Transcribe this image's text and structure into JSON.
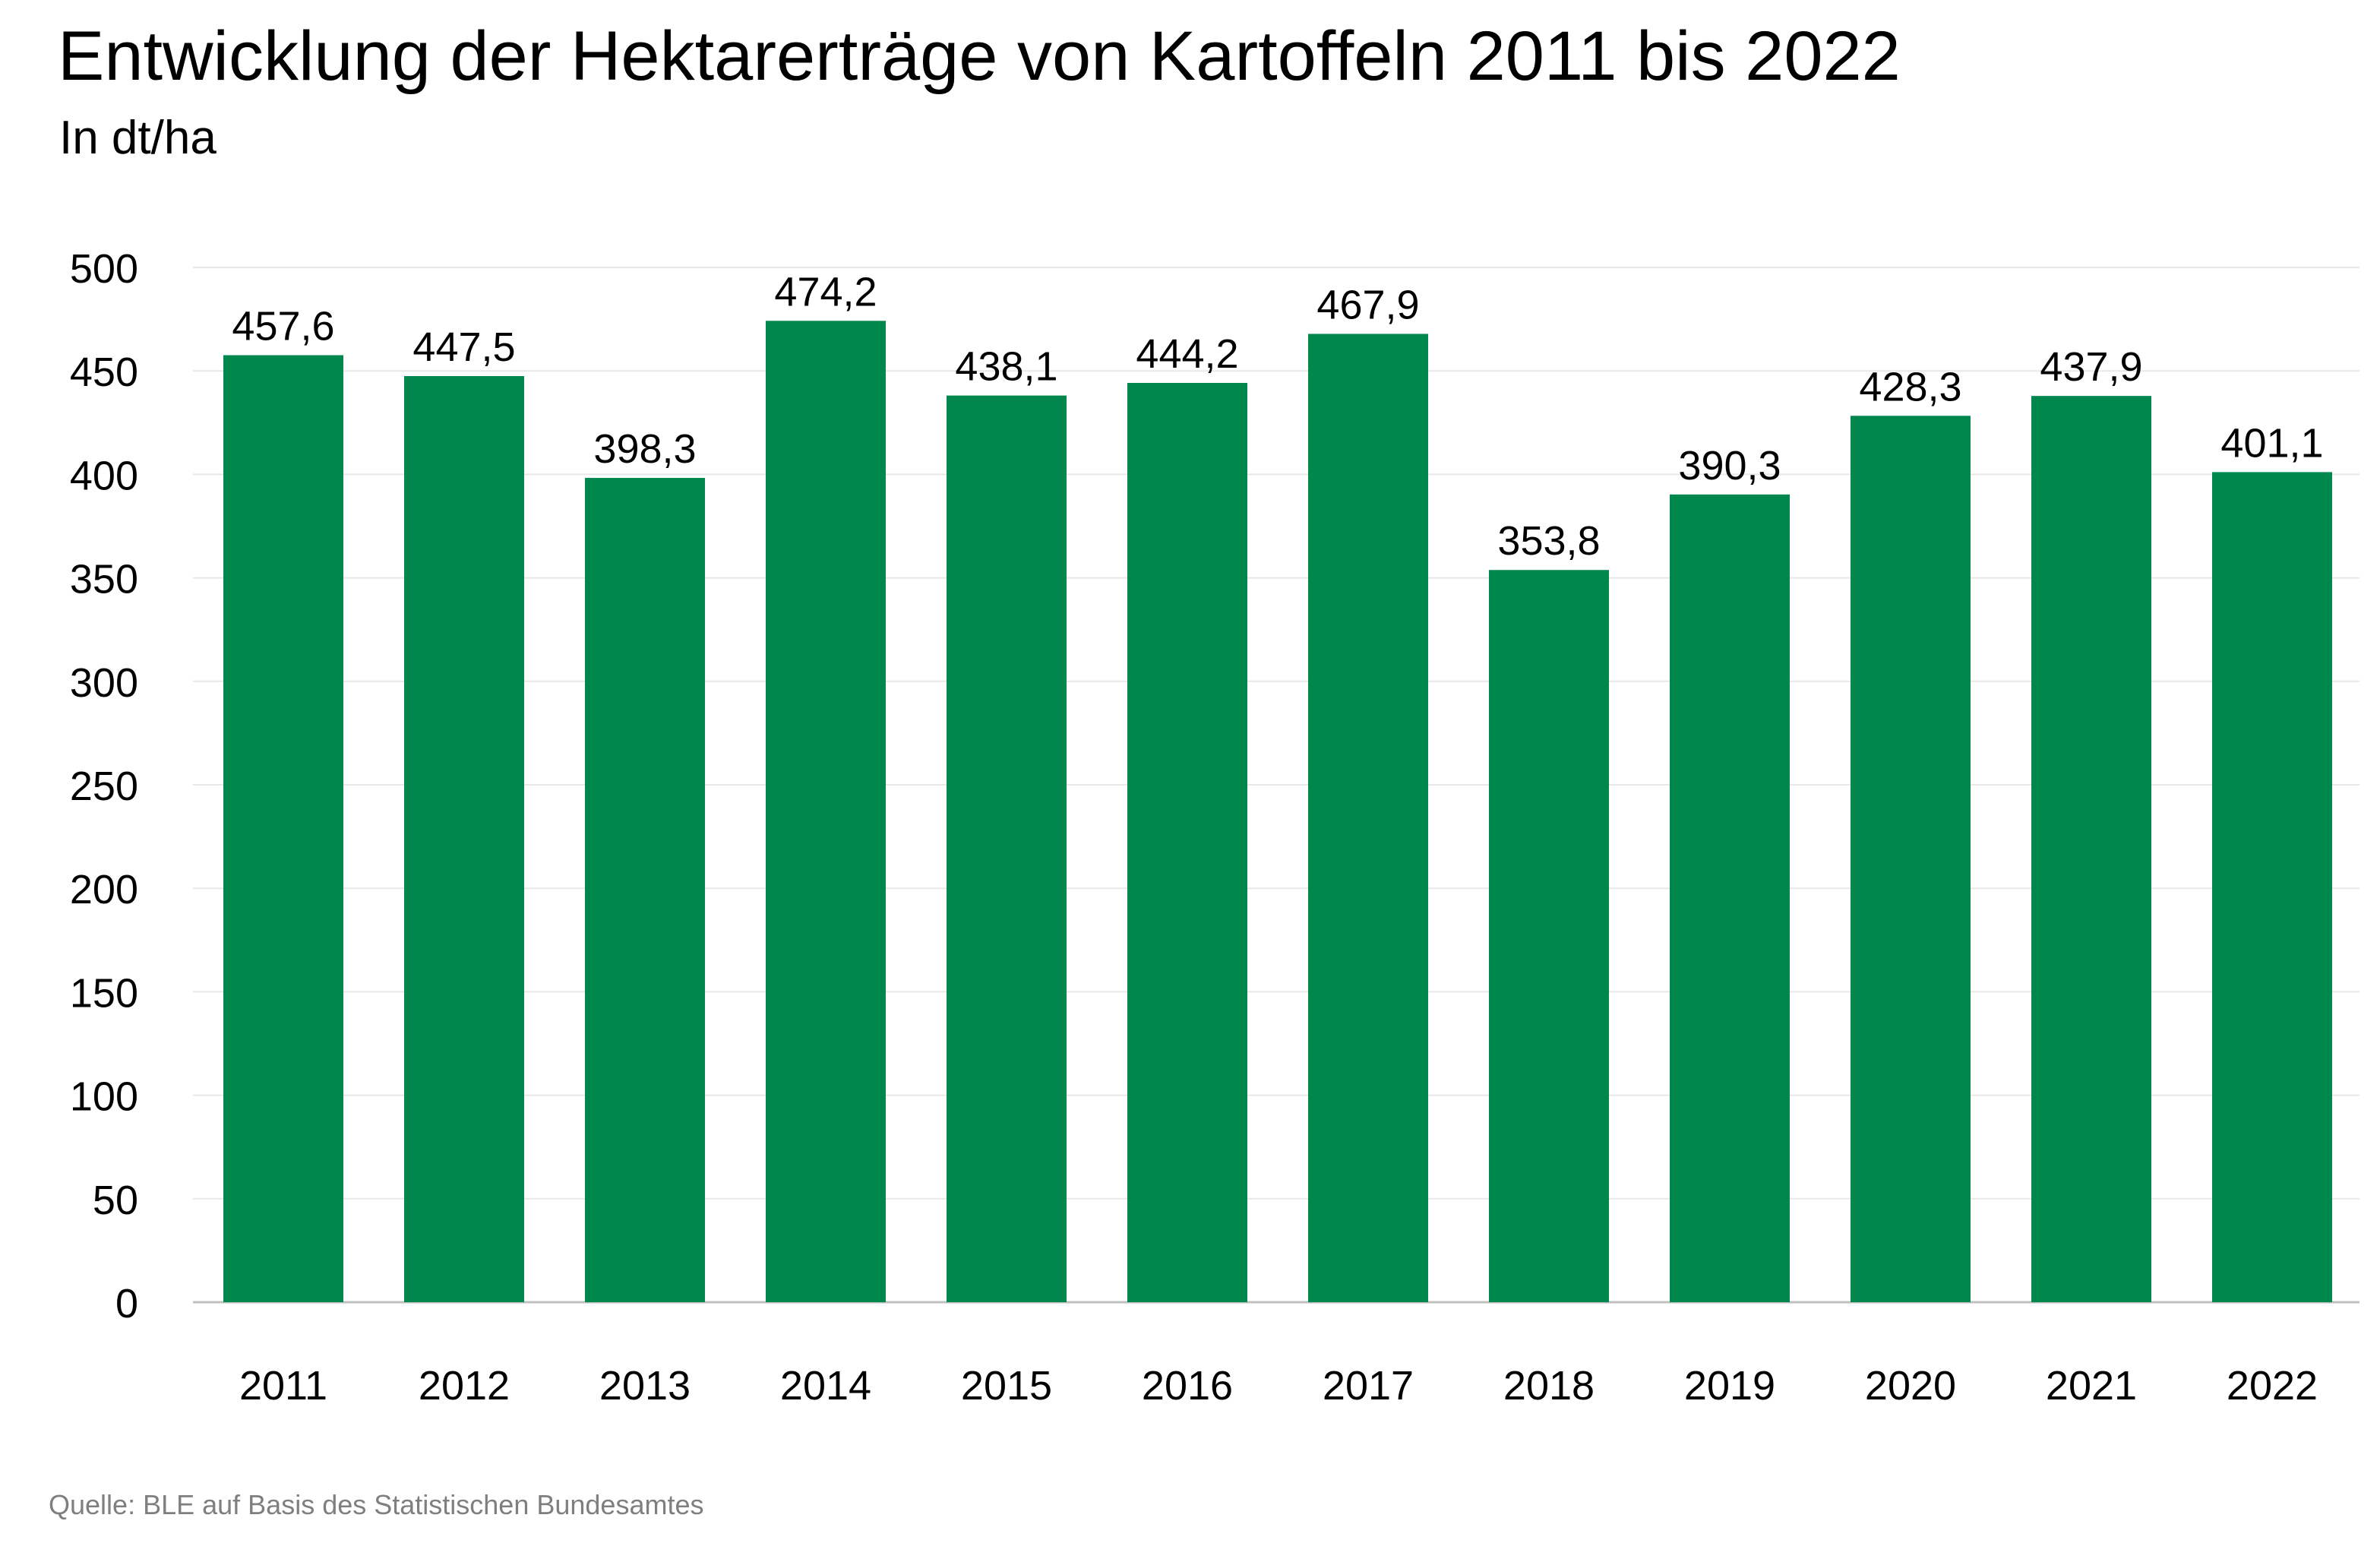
{
  "chart_data": {
    "type": "bar",
    "title": "Entwicklung der Hektarerträge von Kartoffeln 2011 bis 2022",
    "subtitle": "In dt/ha",
    "source": "Quelle: BLE auf Basis des Statistischen Bundesamtes",
    "categories": [
      "2011",
      "2012",
      "2013",
      "2014",
      "2015",
      "2016",
      "2017",
      "2018",
      "2019",
      "2020",
      "2021",
      "2022"
    ],
    "values": [
      457.6,
      447.5,
      398.3,
      474.2,
      438.1,
      444.2,
      467.9,
      353.8,
      390.3,
      428.3,
      437.9,
      401.1
    ],
    "value_labels": [
      "457,6",
      "447,5",
      "398,3",
      "474,2",
      "438,1",
      "444,2",
      "467,9",
      "353,8",
      "390,3",
      "428,3",
      "437,9",
      "401,1"
    ],
    "y_ticks": [
      0,
      50,
      100,
      150,
      200,
      250,
      300,
      350,
      400,
      450,
      500
    ],
    "ylim": [
      0,
      500
    ],
    "xlabel": "",
    "ylabel": "",
    "grid": true,
    "legend": "none",
    "colors": {
      "bar": "#00874e",
      "grid": "#e8e8e8",
      "axis": "#bfbfbf",
      "source_text": "#7f7f7f"
    }
  }
}
